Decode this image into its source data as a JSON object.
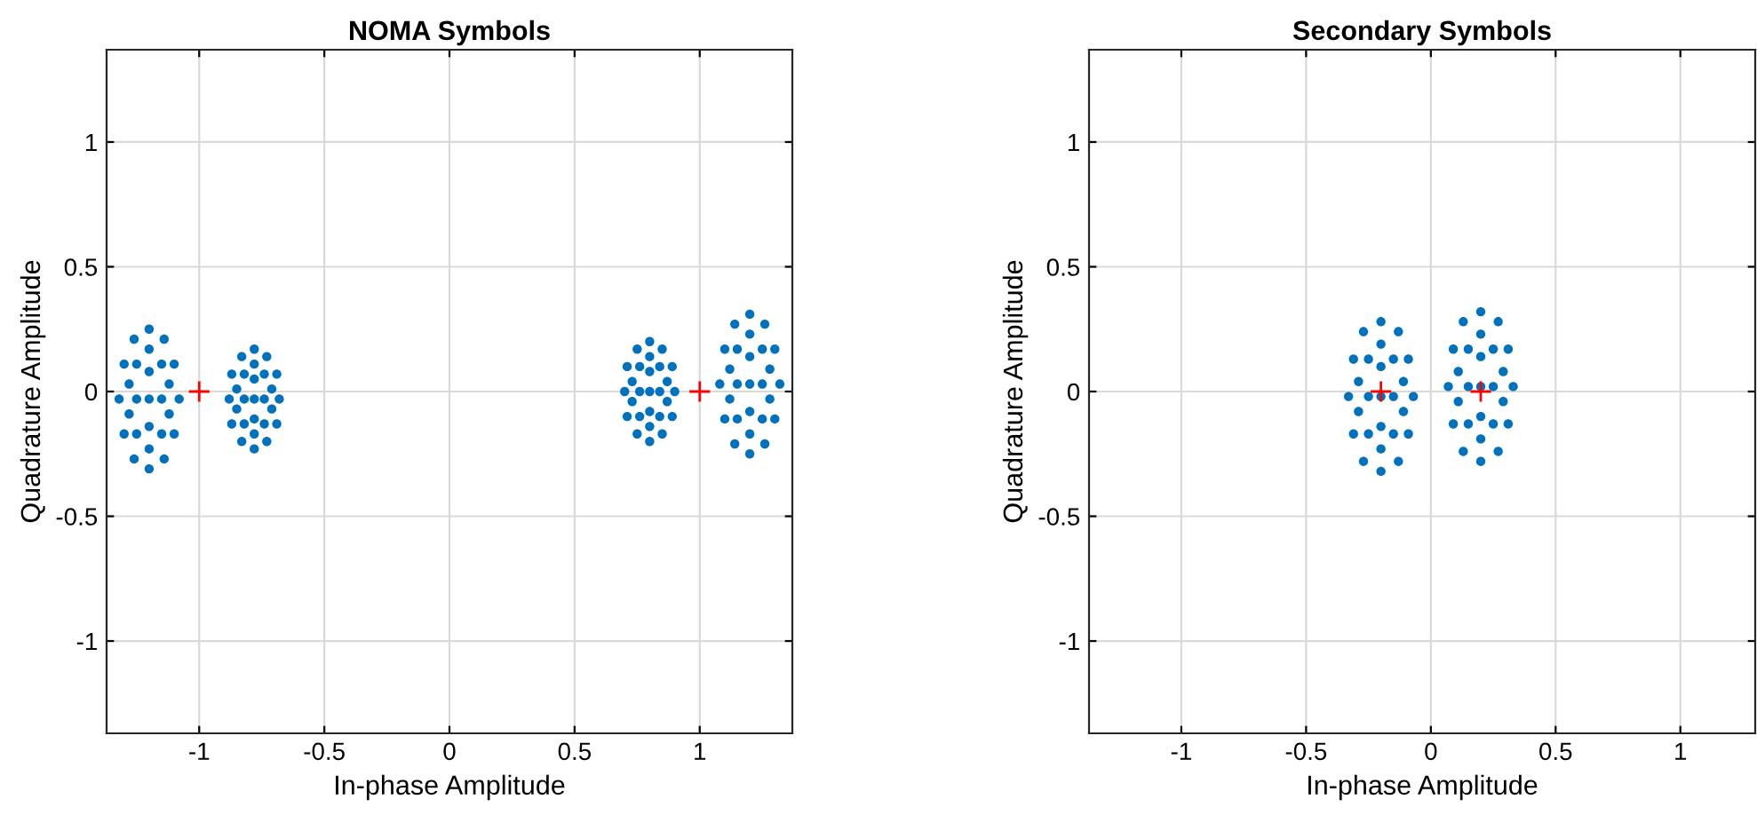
{
  "chart_data": [
    {
      "type": "scatter",
      "title": "NOMA Symbols",
      "xlabel": "In-phase Amplitude",
      "ylabel": "Quadrature Amplitude",
      "xlim": [
        -1.37,
        1.37
      ],
      "ylim": [
        -1.37,
        1.37
      ],
      "xticks": [
        -1,
        -0.5,
        0,
        0.5,
        1
      ],
      "yticks": [
        -1,
        -0.5,
        0,
        0.5,
        1
      ],
      "grid": true,
      "series": [
        {
          "color": "#0072bd",
          "marker": "circle",
          "x": [
            -1.2,
            -1.14,
            -1.1,
            -1.08,
            -1.1,
            -1.14,
            -1.2,
            -1.26,
            -1.3,
            -1.32,
            -1.3,
            -1.26,
            -1.2,
            -1.15,
            -1.25,
            -1.2,
            -1.2,
            -1.15,
            -1.25,
            -1.15,
            -1.25,
            -1.2,
            -1.2,
            -1.12,
            -1.28,
            -1.12,
            -1.28,
            -0.78,
            -0.73,
            -0.69,
            -0.68,
            -0.69,
            -0.73,
            -0.78,
            -0.83,
            -0.87,
            -0.88,
            -0.87,
            -0.83,
            -0.78,
            -0.74,
            -0.82,
            -0.78,
            -0.78,
            -0.74,
            -0.82,
            -0.74,
            -0.82,
            -0.78,
            -0.78,
            -0.71,
            -0.85,
            -0.71,
            -0.85,
            0.8,
            0.85,
            0.89,
            0.9,
            0.89,
            0.85,
            0.8,
            0.75,
            0.71,
            0.7,
            0.71,
            0.75,
            0.8,
            0.84,
            0.76,
            0.8,
            0.8,
            0.84,
            0.76,
            0.84,
            0.76,
            0.8,
            0.8,
            0.87,
            0.73,
            0.87,
            0.73,
            1.2,
            1.26,
            1.3,
            1.32,
            1.3,
            1.26,
            1.2,
            1.14,
            1.1,
            1.08,
            1.1,
            1.14,
            1.2,
            1.25,
            1.15,
            1.2,
            1.2,
            1.25,
            1.15,
            1.25,
            1.15,
            1.2,
            1.2,
            1.28,
            1.12,
            1.28,
            1.12
          ],
          "values": [
            0.25,
            0.21,
            0.11,
            -0.03,
            -0.17,
            -0.27,
            -0.31,
            -0.27,
            -0.17,
            -0.03,
            0.11,
            0.21,
            -0.03,
            -0.03,
            -0.03,
            0.08,
            -0.14,
            0.11,
            0.11,
            -0.17,
            -0.17,
            0.17,
            -0.23,
            0.03,
            -0.09,
            -0.09,
            0.03,
            0.17,
            0.14,
            0.07,
            -0.03,
            -0.13,
            -0.2,
            -0.23,
            -0.2,
            -0.13,
            -0.03,
            0.07,
            0.14,
            -0.03,
            -0.03,
            -0.03,
            0.05,
            -0.11,
            0.07,
            0.07,
            -0.13,
            -0.13,
            0.11,
            -0.17,
            0.01,
            -0.07,
            -0.07,
            0.01,
            0.2,
            0.17,
            0.1,
            0,
            -0.1,
            -0.17,
            -0.2,
            -0.17,
            -0.1,
            0,
            0.1,
            0.17,
            0,
            0,
            0,
            0.08,
            -0.08,
            0.1,
            0.1,
            -0.1,
            -0.1,
            0.14,
            -0.14,
            0.04,
            -0.04,
            -0.04,
            0.04,
            0.31,
            0.27,
            0.17,
            0.03,
            -0.11,
            -0.21,
            -0.25,
            -0.21,
            -0.11,
            0.03,
            0.17,
            0.27,
            0.03,
            0.03,
            0.03,
            0.14,
            -0.08,
            0.17,
            0.17,
            -0.11,
            -0.11,
            0.23,
            -0.17,
            0.09,
            -0.03,
            -0.03,
            0.09
          ]
        },
        {
          "color": "#ff0000",
          "marker": "cross",
          "x": [
            -1,
            1
          ],
          "values": [
            0,
            0
          ]
        }
      ]
    },
    {
      "type": "scatter",
      "title": "Secondary Symbols",
      "xlabel": "In-phase Amplitude",
      "ylabel": "Quadrature Amplitude",
      "xlim": [
        -1.37,
        1.3
      ],
      "ylim": [
        -1.37,
        1.37
      ],
      "xticks": [
        -1,
        -0.5,
        0,
        0.5,
        1
      ],
      "yticks": [
        -1,
        -0.5,
        0,
        0.5,
        1
      ],
      "grid": true,
      "series": [
        {
          "color": "#0072bd",
          "marker": "circle",
          "x": [
            -0.2,
            -0.13,
            -0.09,
            -0.07,
            -0.09,
            -0.13,
            -0.2,
            -0.27,
            -0.31,
            -0.33,
            -0.31,
            -0.27,
            -0.2,
            -0.15,
            -0.25,
            -0.2,
            -0.2,
            -0.15,
            -0.25,
            -0.15,
            -0.25,
            -0.2,
            -0.2,
            -0.11,
            -0.29,
            -0.11,
            -0.29,
            0.2,
            0.27,
            0.31,
            0.33,
            0.31,
            0.27,
            0.2,
            0.13,
            0.09,
            0.07,
            0.09,
            0.13,
            0.2,
            0.25,
            0.15,
            0.2,
            0.2,
            0.25,
            0.15,
            0.25,
            0.15,
            0.2,
            0.2,
            0.29,
            0.11,
            0.29,
            0.11
          ],
          "values": [
            0.28,
            0.24,
            0.13,
            -0.02,
            -0.17,
            -0.28,
            -0.32,
            -0.28,
            -0.17,
            -0.02,
            0.13,
            0.24,
            -0.02,
            -0.02,
            -0.02,
            0.1,
            -0.14,
            0.13,
            0.13,
            -0.17,
            -0.17,
            0.19,
            -0.23,
            0.04,
            -0.08,
            -0.08,
            0.04,
            0.32,
            0.28,
            0.17,
            0.02,
            -0.13,
            -0.24,
            -0.28,
            -0.24,
            -0.13,
            0.02,
            0.17,
            0.28,
            0.02,
            0.02,
            0.02,
            0.14,
            -0.1,
            0.17,
            0.17,
            -0.13,
            -0.13,
            0.23,
            -0.19,
            0.08,
            -0.04,
            -0.04,
            0.08
          ]
        },
        {
          "color": "#ff0000",
          "marker": "cross",
          "x": [
            -0.2,
            0.2
          ],
          "values": [
            0,
            0
          ]
        }
      ]
    }
  ]
}
